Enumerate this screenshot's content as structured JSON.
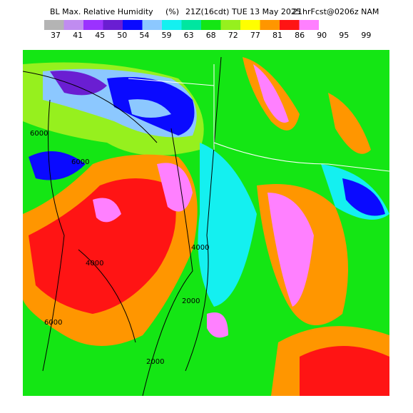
{
  "header": {
    "title": "BL Max. Relative Humidity",
    "units": "(%)",
    "valid": "21Z(16cdt) TUE 13 May 2025",
    "forecast": "21hrFcst@0206z NAM"
  },
  "legend": {
    "labels": [
      37,
      41,
      45,
      50,
      54,
      59,
      63,
      68,
      72,
      77,
      81,
      86,
      90,
      95,
      99
    ],
    "colors": [
      "#b4b4b4",
      "#c08cf0",
      "#9b32ff",
      "#6a1ed2",
      "#0a0aff",
      "#8cc8ff",
      "#14f0f0",
      "#00e6a0",
      "#14e614",
      "#96f01e",
      "#ffff00",
      "#ff9600",
      "#ff1414",
      "#ff80ff"
    ]
  },
  "map": {
    "contour_labels": [
      "6000",
      "6000",
      "4000",
      "4000",
      "2000",
      "2000",
      "6000"
    ]
  }
}
